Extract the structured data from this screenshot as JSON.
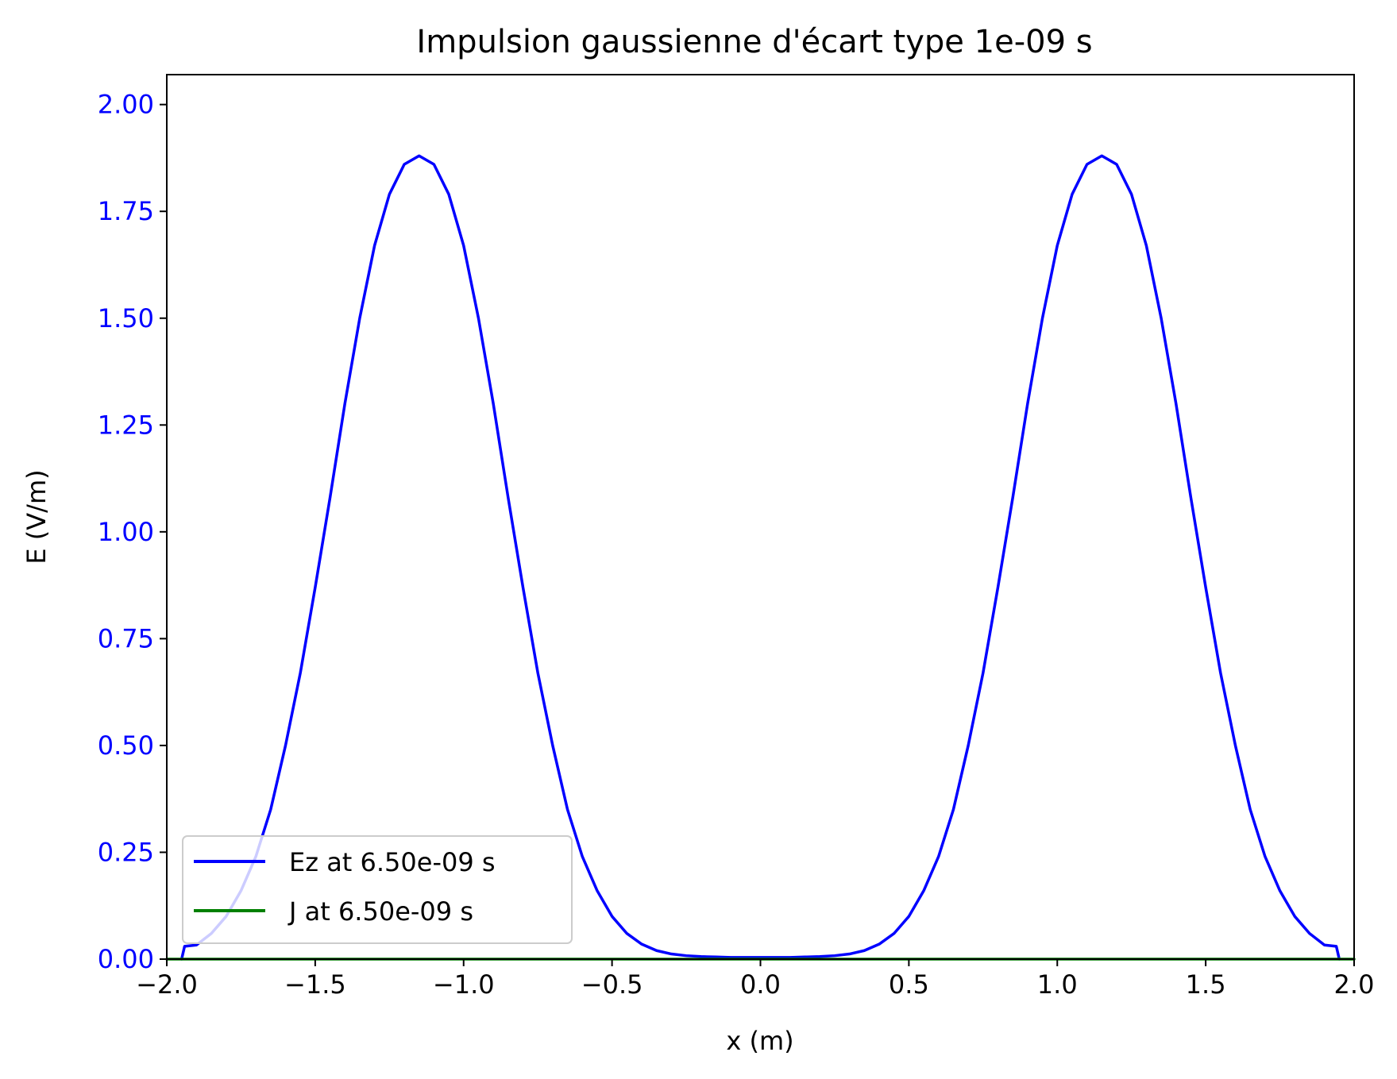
{
  "chart_data": {
    "type": "line",
    "title": "Impulsion gaussienne d'écart type 1e-09 s",
    "xlabel": "x (m)",
    "ylabel": "E (V/m)",
    "xlim": [
      -2.0,
      2.0
    ],
    "ylim": [
      0.0,
      2.07
    ],
    "x_ticks": [
      -2.0,
      -1.5,
      -1.0,
      -0.5,
      0.0,
      0.5,
      1.0,
      1.5,
      2.0
    ],
    "x_tick_labels": [
      "−2.0",
      "−1.5",
      "−1.0",
      "−0.5",
      "0.0",
      "0.5",
      "1.0",
      "1.5",
      "2.0"
    ],
    "y_ticks": [
      0.0,
      0.25,
      0.5,
      0.75,
      1.0,
      1.25,
      1.5,
      1.75,
      2.0
    ],
    "y_tick_labels": [
      "0.00",
      "0.25",
      "0.50",
      "0.75",
      "1.00",
      "1.25",
      "1.50",
      "1.75",
      "2.00"
    ],
    "y_tick_color": "#0000ff",
    "grid": false,
    "legend_position": "lower-left",
    "series": [
      {
        "name": "Ez at 6.50e-09 s",
        "color": "#0000ff",
        "x": [
          -1.95,
          -1.94,
          -1.9,
          -1.85,
          -1.8,
          -1.75,
          -1.7,
          -1.65,
          -1.6,
          -1.55,
          -1.5,
          -1.45,
          -1.4,
          -1.35,
          -1.3,
          -1.25,
          -1.2,
          -1.15,
          -1.1,
          -1.05,
          -1.0,
          -0.95,
          -0.9,
          -0.85,
          -0.8,
          -0.75,
          -0.7,
          -0.65,
          -0.6,
          -0.55,
          -0.5,
          -0.45,
          -0.4,
          -0.35,
          -0.3,
          -0.25,
          -0.2,
          -0.15,
          -0.1,
          -0.05,
          0.0,
          0.05,
          0.1,
          0.15,
          0.2,
          0.25,
          0.3,
          0.35,
          0.4,
          0.45,
          0.5,
          0.55,
          0.6,
          0.65,
          0.7,
          0.75,
          0.8,
          0.85,
          0.9,
          0.95,
          1.0,
          1.05,
          1.1,
          1.15,
          1.2,
          1.25,
          1.3,
          1.35,
          1.4,
          1.45,
          1.5,
          1.55,
          1.6,
          1.65,
          1.7,
          1.75,
          1.8,
          1.85,
          1.9,
          1.94,
          1.95
        ],
        "y": [
          0.0,
          0.03,
          0.033,
          0.06,
          0.1,
          0.16,
          0.24,
          0.35,
          0.5,
          0.67,
          0.87,
          1.08,
          1.3,
          1.5,
          1.67,
          1.79,
          1.86,
          1.88,
          1.86,
          1.79,
          1.67,
          1.5,
          1.3,
          1.08,
          0.87,
          0.67,
          0.5,
          0.35,
          0.24,
          0.16,
          0.1,
          0.06,
          0.035,
          0.02,
          0.012,
          0.008,
          0.006,
          0.005,
          0.004,
          0.004,
          0.004,
          0.004,
          0.004,
          0.005,
          0.006,
          0.008,
          0.012,
          0.02,
          0.035,
          0.06,
          0.1,
          0.16,
          0.24,
          0.35,
          0.5,
          0.67,
          0.87,
          1.08,
          1.3,
          1.5,
          1.67,
          1.79,
          1.86,
          1.88,
          1.86,
          1.79,
          1.67,
          1.5,
          1.3,
          1.08,
          0.87,
          0.67,
          0.5,
          0.35,
          0.24,
          0.16,
          0.1,
          0.06,
          0.033,
          0.03,
          0.0
        ]
      },
      {
        "name": "J at 6.50e-09 s",
        "color": "#008000",
        "x": [
          -2.0,
          2.0
        ],
        "y": [
          0.0,
          0.0
        ]
      }
    ]
  }
}
